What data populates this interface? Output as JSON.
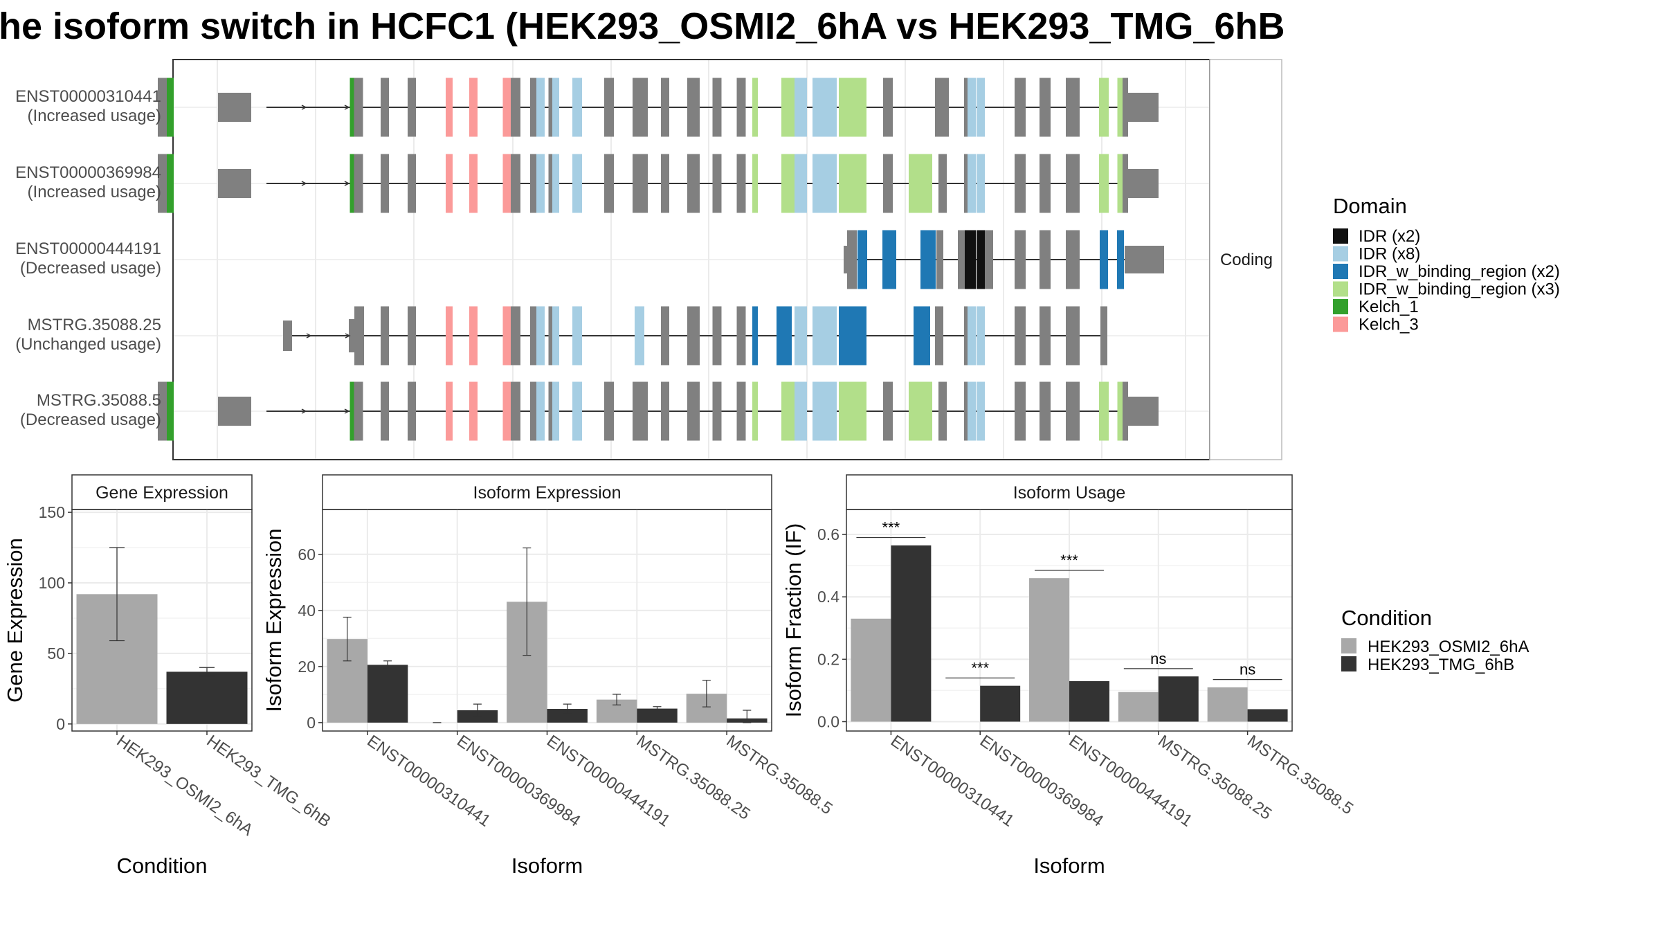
{
  "title": "he isoform switch in HCFC1 (HEK293_OSMI2_6hA vs HEK293_TMG_6hB",
  "colors": {
    "cond_a": "#a8a8a8",
    "cond_b": "#333333",
    "exon": "#808080",
    "line": "#333333",
    "grid": "#ebebeb",
    "panel_border": "#333333",
    "strip_bg": "#ffffff"
  },
  "structure": {
    "strip_label": "Coding",
    "legend_title": "Domain",
    "domains": [
      {
        "name": "IDR (x2)",
        "color": "#111111"
      },
      {
        "name": "IDR (x8)",
        "color": "#a6cee3"
      },
      {
        "name": "IDR_w_binding_region (x2)",
        "color": "#1f78b4"
      },
      {
        "name": "IDR_w_binding_region (x3)",
        "color": "#b2df8a"
      },
      {
        "name": "Kelch_1",
        "color": "#33a02c"
      },
      {
        "name": "Kelch_3",
        "color": "#fb9a99"
      }
    ],
    "transcripts": [
      {
        "id": "ENST00000310441",
        "usage": "(Increased usage)",
        "type": "full"
      },
      {
        "id": "ENST00000369984",
        "usage": "(Increased usage)",
        "type": "full2"
      },
      {
        "id": "ENST00000444191",
        "usage": "(Decreased usage)",
        "type": "partial"
      },
      {
        "id": "MSTRG.35088.25",
        "usage": "(Unchanged usage)",
        "type": "mstrg25"
      },
      {
        "id": "MSTRG.35088.5",
        "usage": "(Decreased usage)",
        "type": "full2"
      }
    ]
  },
  "chart_data": [
    {
      "type": "bar",
      "title": "Gene Expression",
      "xlabel": "Condition",
      "ylabel": "Gene Expression",
      "categories": [
        "HEK293_OSMI2_6hA",
        "HEK293_TMG_6hB"
      ],
      "values": [
        92,
        37
      ],
      "error_low": [
        59,
        34
      ],
      "error_high": [
        125,
        40
      ],
      "ylim": [
        -5,
        152
      ],
      "yticks": [
        0,
        50,
        100,
        150
      ]
    },
    {
      "type": "bar",
      "title": "Isoform Expression",
      "xlabel": "Isoform",
      "ylabel": "Isoform Expression",
      "categories": [
        "ENST00000310441",
        "ENST00000369984",
        "ENST00000444191",
        "MSTRG.35088.25",
        "MSTRG.35088.5"
      ],
      "series": [
        {
          "name": "HEK293_OSMI2_6hA",
          "values": [
            29.8,
            0,
            43.1,
            8.2,
            10.3
          ],
          "error_low": [
            22,
            0,
            24,
            6.3,
            5.6
          ],
          "error_high": [
            37.6,
            0,
            62.3,
            10.1,
            15.1
          ]
        },
        {
          "name": "HEK293_TMG_6hB",
          "values": [
            20.6,
            4.4,
            4.9,
            5.0,
            1.5
          ],
          "error_low": [
            19.2,
            2.2,
            3.2,
            4.3,
            0
          ],
          "error_high": [
            22.0,
            6.6,
            6.6,
            5.7,
            4.4
          ]
        }
      ],
      "ylim": [
        -3,
        76
      ],
      "yticks": [
        0,
        20,
        40,
        60
      ]
    },
    {
      "type": "bar",
      "title": "Isoform Usage",
      "xlabel": "Isoform",
      "ylabel": "Isoform Fraction (IF)",
      "categories": [
        "ENST00000310441",
        "ENST00000369984",
        "ENST00000444191",
        "MSTRG.35088.25",
        "MSTRG.35088.5"
      ],
      "series": [
        {
          "name": "HEK293_OSMI2_6hA",
          "values": [
            0.33,
            0,
            0.46,
            0.095,
            0.11
          ]
        },
        {
          "name": "HEK293_TMG_6hB",
          "values": [
            0.565,
            0.115,
            0.13,
            0.145,
            0.04
          ]
        }
      ],
      "significance": [
        "***",
        "***",
        "***",
        "ns",
        "ns"
      ],
      "ylim": [
        -0.03,
        0.68
      ],
      "yticks": [
        "0.0",
        "0.2",
        "0.4",
        "0.6"
      ]
    }
  ],
  "legend_condition": {
    "title": "Condition",
    "items": [
      "HEK293_OSMI2_6hA",
      "HEK293_TMG_6hB"
    ]
  }
}
